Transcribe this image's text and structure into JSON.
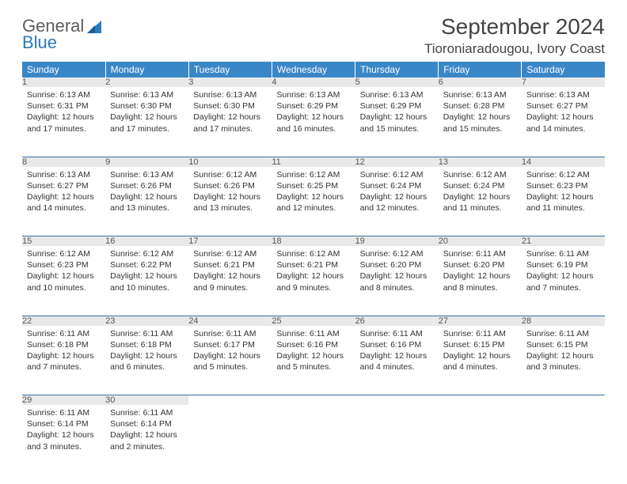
{
  "brand": {
    "part1": "General",
    "part2": "Blue"
  },
  "title": "September 2024",
  "location": "Tioroniaradougou, Ivory Coast",
  "colors": {
    "header_bg": "#3a87c8",
    "header_text": "#ffffff",
    "daynum_bg": "#e9e9e9",
    "rule": "#3a6fa0",
    "brand_gray": "#5c5c5c",
    "brand_blue": "#2a7bbf"
  },
  "weekdays": [
    "Sunday",
    "Monday",
    "Tuesday",
    "Wednesday",
    "Thursday",
    "Friday",
    "Saturday"
  ],
  "weeks": [
    [
      {
        "n": "1",
        "sr": "6:13 AM",
        "ss": "6:31 PM",
        "dl": "12 hours and 17 minutes."
      },
      {
        "n": "2",
        "sr": "6:13 AM",
        "ss": "6:30 PM",
        "dl": "12 hours and 17 minutes."
      },
      {
        "n": "3",
        "sr": "6:13 AM",
        "ss": "6:30 PM",
        "dl": "12 hours and 17 minutes."
      },
      {
        "n": "4",
        "sr": "6:13 AM",
        "ss": "6:29 PM",
        "dl": "12 hours and 16 minutes."
      },
      {
        "n": "5",
        "sr": "6:13 AM",
        "ss": "6:29 PM",
        "dl": "12 hours and 15 minutes."
      },
      {
        "n": "6",
        "sr": "6:13 AM",
        "ss": "6:28 PM",
        "dl": "12 hours and 15 minutes."
      },
      {
        "n": "7",
        "sr": "6:13 AM",
        "ss": "6:27 PM",
        "dl": "12 hours and 14 minutes."
      }
    ],
    [
      {
        "n": "8",
        "sr": "6:13 AM",
        "ss": "6:27 PM",
        "dl": "12 hours and 14 minutes."
      },
      {
        "n": "9",
        "sr": "6:13 AM",
        "ss": "6:26 PM",
        "dl": "12 hours and 13 minutes."
      },
      {
        "n": "10",
        "sr": "6:12 AM",
        "ss": "6:26 PM",
        "dl": "12 hours and 13 minutes."
      },
      {
        "n": "11",
        "sr": "6:12 AM",
        "ss": "6:25 PM",
        "dl": "12 hours and 12 minutes."
      },
      {
        "n": "12",
        "sr": "6:12 AM",
        "ss": "6:24 PM",
        "dl": "12 hours and 12 minutes."
      },
      {
        "n": "13",
        "sr": "6:12 AM",
        "ss": "6:24 PM",
        "dl": "12 hours and 11 minutes."
      },
      {
        "n": "14",
        "sr": "6:12 AM",
        "ss": "6:23 PM",
        "dl": "12 hours and 11 minutes."
      }
    ],
    [
      {
        "n": "15",
        "sr": "6:12 AM",
        "ss": "6:23 PM",
        "dl": "12 hours and 10 minutes."
      },
      {
        "n": "16",
        "sr": "6:12 AM",
        "ss": "6:22 PM",
        "dl": "12 hours and 10 minutes."
      },
      {
        "n": "17",
        "sr": "6:12 AM",
        "ss": "6:21 PM",
        "dl": "12 hours and 9 minutes."
      },
      {
        "n": "18",
        "sr": "6:12 AM",
        "ss": "6:21 PM",
        "dl": "12 hours and 9 minutes."
      },
      {
        "n": "19",
        "sr": "6:12 AM",
        "ss": "6:20 PM",
        "dl": "12 hours and 8 minutes."
      },
      {
        "n": "20",
        "sr": "6:11 AM",
        "ss": "6:20 PM",
        "dl": "12 hours and 8 minutes."
      },
      {
        "n": "21",
        "sr": "6:11 AM",
        "ss": "6:19 PM",
        "dl": "12 hours and 7 minutes."
      }
    ],
    [
      {
        "n": "22",
        "sr": "6:11 AM",
        "ss": "6:18 PM",
        "dl": "12 hours and 7 minutes."
      },
      {
        "n": "23",
        "sr": "6:11 AM",
        "ss": "6:18 PM",
        "dl": "12 hours and 6 minutes."
      },
      {
        "n": "24",
        "sr": "6:11 AM",
        "ss": "6:17 PM",
        "dl": "12 hours and 5 minutes."
      },
      {
        "n": "25",
        "sr": "6:11 AM",
        "ss": "6:16 PM",
        "dl": "12 hours and 5 minutes."
      },
      {
        "n": "26",
        "sr": "6:11 AM",
        "ss": "6:16 PM",
        "dl": "12 hours and 4 minutes."
      },
      {
        "n": "27",
        "sr": "6:11 AM",
        "ss": "6:15 PM",
        "dl": "12 hours and 4 minutes."
      },
      {
        "n": "28",
        "sr": "6:11 AM",
        "ss": "6:15 PM",
        "dl": "12 hours and 3 minutes."
      }
    ],
    [
      {
        "n": "29",
        "sr": "6:11 AM",
        "ss": "6:14 PM",
        "dl": "12 hours and 3 minutes."
      },
      {
        "n": "30",
        "sr": "6:11 AM",
        "ss": "6:14 PM",
        "dl": "12 hours and 2 minutes."
      },
      null,
      null,
      null,
      null,
      null
    ]
  ],
  "labels": {
    "sunrise": "Sunrise:",
    "sunset": "Sunset:",
    "daylight": "Daylight:"
  }
}
